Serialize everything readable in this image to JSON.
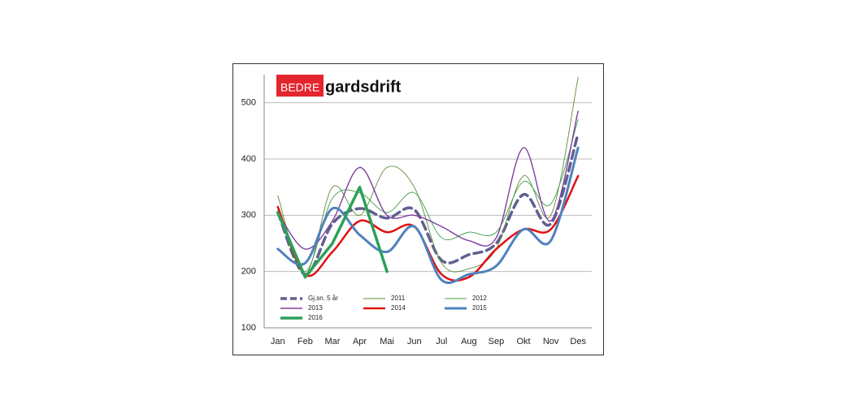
{
  "chart_data": {
    "type": "line",
    "logo": {
      "left": "BEDRE",
      "right": "gardsdrift"
    },
    "categories": [
      "Jan",
      "Feb",
      "Mar",
      "Apr",
      "Mai",
      "Jun",
      "Jul",
      "Aug",
      "Sep",
      "Okt",
      "Nov",
      "Des"
    ],
    "ylim": [
      100,
      550
    ],
    "yticks": [
      100,
      200,
      300,
      400,
      500
    ],
    "grid": true,
    "series": [
      {
        "name": "Gj.sn. 5 år",
        "color": "#5f5f8f",
        "width": 3.5,
        "dash": true,
        "smooth": true,
        "values": [
          305,
          195,
          285,
          312,
          295,
          310,
          220,
          230,
          250,
          337,
          285,
          445
        ]
      },
      {
        "name": "2011",
        "color": "#5e8c3a",
        "width": 0.9,
        "smooth": true,
        "values": [
          335,
          195,
          350,
          300,
          385,
          350,
          215,
          205,
          240,
          370,
          300,
          545
        ]
      },
      {
        "name": "2012",
        "color": "#3fa04a",
        "width": 0.9,
        "smooth": true,
        "values": [
          310,
          200,
          330,
          340,
          305,
          340,
          260,
          270,
          270,
          360,
          320,
          470
        ]
      },
      {
        "name": "2013",
        "color": "#7f3f9f",
        "width": 1.4,
        "smooth": true,
        "values": [
          305,
          240,
          290,
          385,
          300,
          300,
          280,
          255,
          260,
          420,
          290,
          485
        ]
      },
      {
        "name": "2014",
        "color": "#e01010",
        "width": 2.5,
        "smooth": true,
        "values": [
          315,
          195,
          235,
          290,
          270,
          280,
          195,
          190,
          240,
          275,
          275,
          370
        ]
      },
      {
        "name": "2015",
        "color": "#4f81bd",
        "width": 3,
        "smooth": true,
        "values": [
          240,
          215,
          312,
          265,
          235,
          280,
          185,
          195,
          210,
          275,
          255,
          420
        ]
      },
      {
        "name": "2016",
        "color": "#2ca05a",
        "width": 3.5,
        "smooth": false,
        "values": [
          305,
          190,
          250,
          350,
          200,
          null,
          null,
          null,
          null,
          null,
          null,
          null
        ]
      }
    ]
  }
}
